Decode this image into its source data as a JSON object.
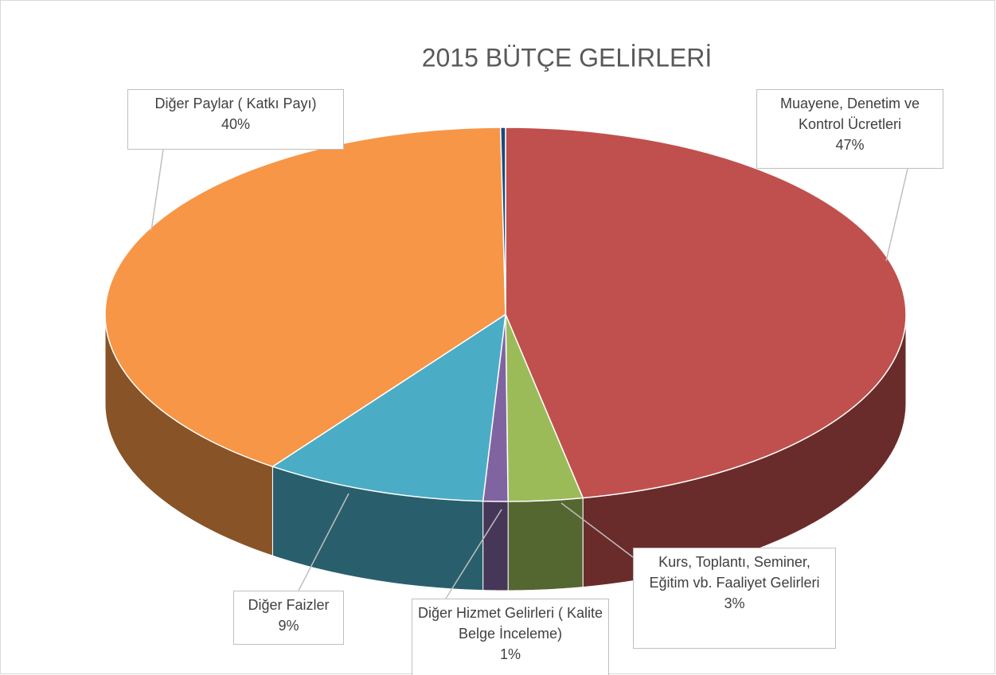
{
  "chart_data": {
    "type": "pie3d",
    "title": "2015 BÜTÇE GELİRLERİ",
    "categories": [
      "Muayene, Denetim ve Kontrol Ücretleri",
      "Kurs, Toplantı, Seminer, Eğitim vb. Faaliyet Gelirleri",
      "Diğer Hizmet Gelirleri ( Kalite Belge İnceleme)",
      "Diğer Faizler",
      "Diğer Paylar ( Katkı Payı)",
      null
    ],
    "values": [
      47,
      3,
      1,
      9,
      40,
      0.2
    ],
    "value_labels": [
      "47%",
      "3%",
      "1%",
      "9%",
      "40%",
      null
    ],
    "colors": [
      "#C0504D",
      "#9BBB59",
      "#8064A2",
      "#4BACC6",
      "#F79646",
      "#1F497D"
    ]
  }
}
